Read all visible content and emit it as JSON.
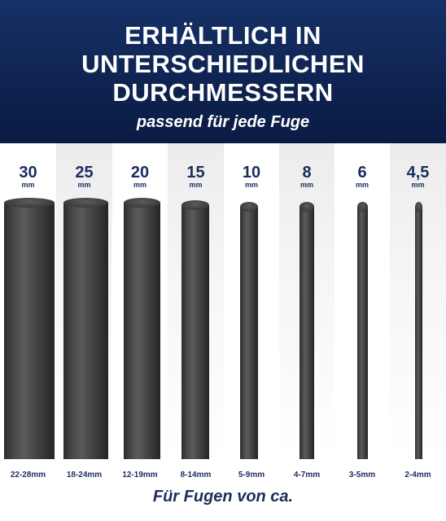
{
  "header": {
    "title_line1": "ERHÄLTLICH IN",
    "title_line2": "UNTERSCHIEDLICHEN",
    "title_line3": "DURCHMESSERN",
    "subtitle": "passend für jede Fuge"
  },
  "sizes": [
    {
      "diameter": "30",
      "unit": "mm",
      "range": "22-28mm"
    },
    {
      "diameter": "25",
      "unit": "mm",
      "range": "18-24mm"
    },
    {
      "diameter": "20",
      "unit": "mm",
      "range": "12-19mm"
    },
    {
      "diameter": "15",
      "unit": "mm",
      "range": "8-14mm"
    },
    {
      "diameter": "10",
      "unit": "mm",
      "range": "5-9mm"
    },
    {
      "diameter": "8",
      "unit": "mm",
      "range": "4-7mm"
    },
    {
      "diameter": "6",
      "unit": "mm",
      "range": "3-5mm"
    },
    {
      "diameter": "4,5",
      "unit": "mm",
      "range": "2-4mm"
    }
  ],
  "footer": {
    "text": "Für Fugen von ca."
  },
  "colors": {
    "header_bg": "#0f2452",
    "text_accent": "#1b2d5e",
    "rod": "#3e3e3e"
  }
}
